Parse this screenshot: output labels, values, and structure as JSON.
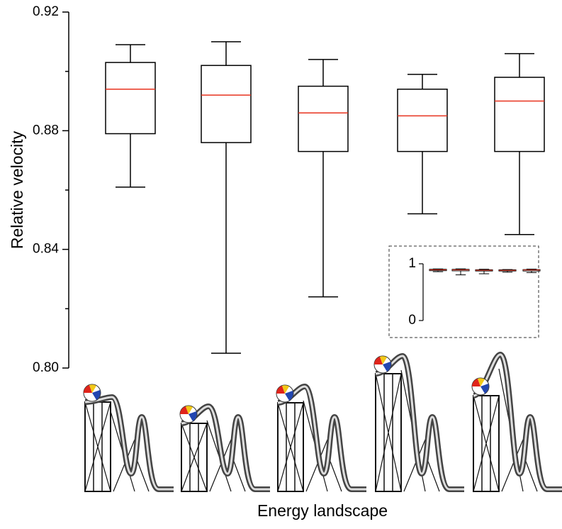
{
  "chart_data": {
    "type": "box",
    "y_label": "Relative velocity",
    "x_label": "Energy landscape",
    "ylim": [
      0.8,
      0.92
    ],
    "yticks": [
      {
        "value": 0.8,
        "label": "0.80"
      },
      {
        "value": 0.84,
        "label": "0.84"
      },
      {
        "value": 0.88,
        "label": "0.88"
      },
      {
        "value": 0.92,
        "label": "0.92"
      }
    ],
    "minor_yticks": [
      0.82,
      0.86,
      0.9
    ],
    "box_color": "#000000",
    "median_color": "#e8321e",
    "boxes": [
      {
        "whisker_low": 0.861,
        "q1": 0.879,
        "median": 0.894,
        "q3": 0.903,
        "whisker_high": 0.909
      },
      {
        "whisker_low": 0.805,
        "q1": 0.876,
        "median": 0.892,
        "q3": 0.902,
        "whisker_high": 0.91
      },
      {
        "whisker_low": 0.824,
        "q1": 0.873,
        "median": 0.886,
        "q3": 0.895,
        "whisker_high": 0.904
      },
      {
        "whisker_low": 0.852,
        "q1": 0.873,
        "median": 0.885,
        "q3": 0.894,
        "whisker_high": 0.899
      },
      {
        "whisker_low": 0.845,
        "q1": 0.873,
        "median": 0.89,
        "q3": 0.898,
        "whisker_high": 0.906
      }
    ],
    "inset": {
      "ylim": [
        0,
        1
      ],
      "yticks": [
        0,
        1
      ]
    }
  }
}
